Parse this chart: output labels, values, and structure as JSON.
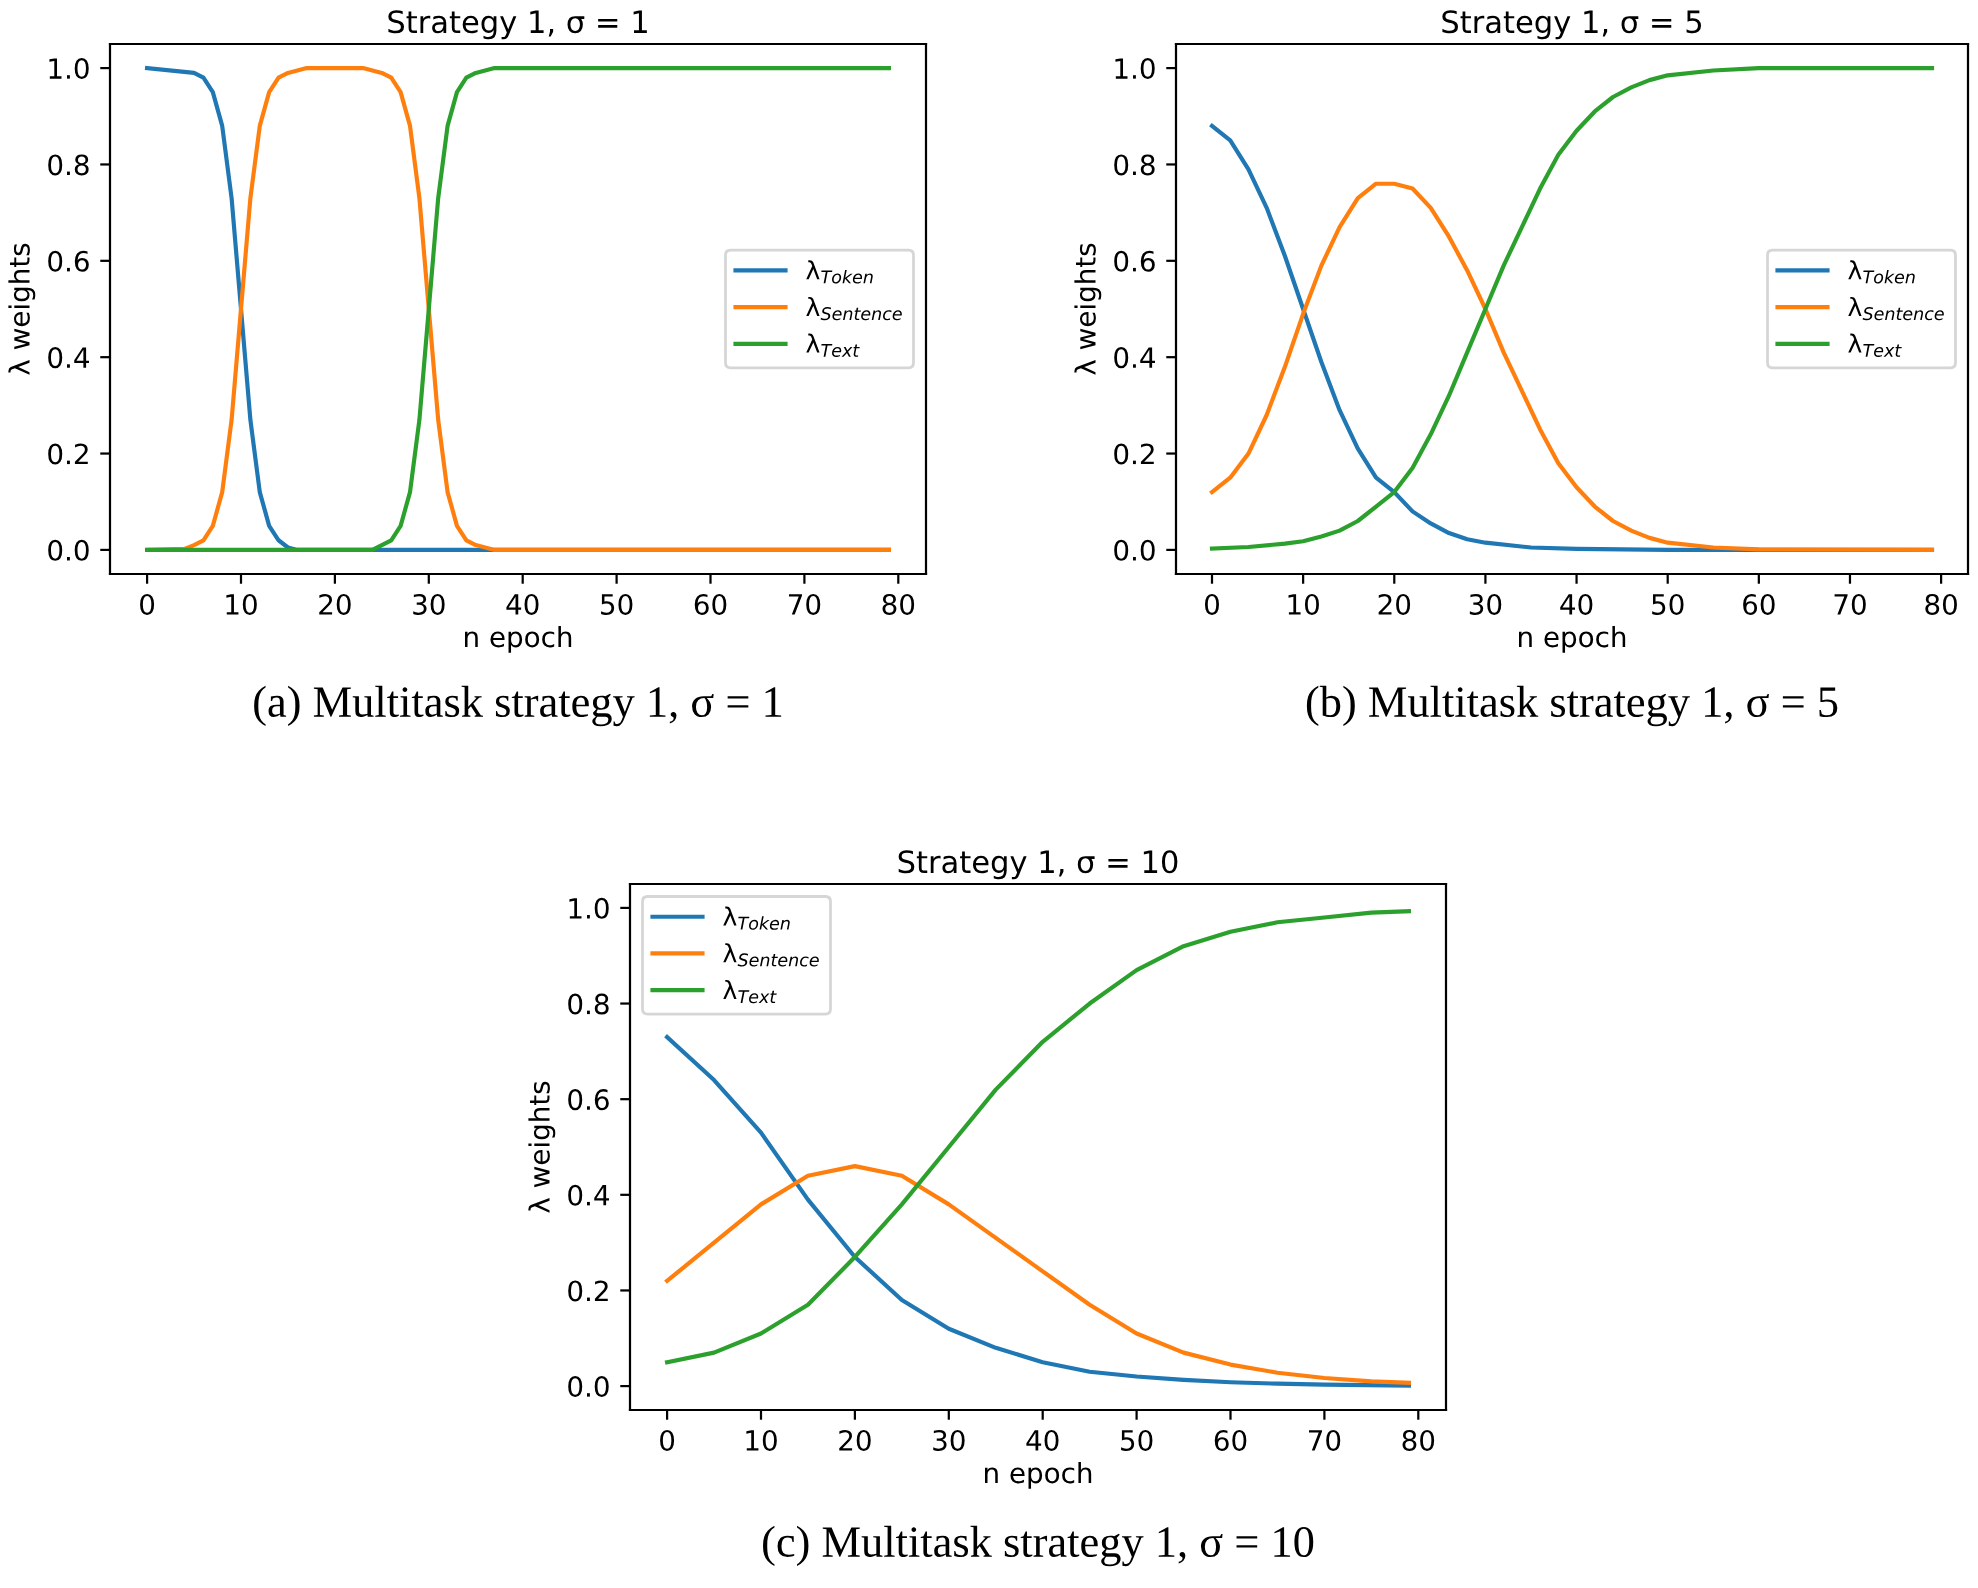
{
  "chart_data": [
    {
      "type": "line",
      "title": "Strategy 1, σ = 1",
      "xlabel": "n epoch",
      "ylabel": "λ weights",
      "legend": "center right",
      "grid": false,
      "xlim": [
        -3.95,
        82.95
      ],
      "xticks": [
        0,
        10,
        20,
        30,
        40,
        50,
        60,
        70,
        80
      ],
      "ylim": [
        -0.05,
        1.05
      ],
      "yticks": [
        {
          "value": 0,
          "label": "0.0"
        },
        {
          "value": 0.2,
          "label": "0.2"
        },
        {
          "value": 0.4,
          "label": "0.4"
        },
        {
          "value": 0.6,
          "label": "0.6"
        },
        {
          "value": 0.8,
          "label": "0.8"
        },
        {
          "value": 1,
          "label": "1.0"
        }
      ],
      "annotations": [
        "(a) Multitask strategy 1, σ = 1"
      ],
      "series": [
        {
          "name": "λ$_{Token}$",
          "color": "#1f77b4",
          "x": [
            0,
            5,
            6,
            7,
            8,
            9,
            10,
            11,
            12,
            13,
            14,
            15,
            16,
            79
          ],
          "values": [
            1,
            0.99,
            0.98,
            0.95,
            0.88,
            0.73,
            0.5,
            0.27,
            0.12,
            0.05,
            0.02,
            0.005,
            0,
            0
          ]
        },
        {
          "name": "λ$_{Sentence}$",
          "color": "#ff7f0e",
          "x": [
            0,
            4,
            5,
            6,
            7,
            8,
            9,
            10,
            11,
            12,
            13,
            14,
            15,
            17,
            23,
            25,
            26,
            27,
            28,
            29,
            30,
            31,
            32,
            33,
            34,
            35,
            37,
            79
          ],
          "values": [
            0,
            0.002,
            0.01,
            0.02,
            0.05,
            0.12,
            0.27,
            0.5,
            0.73,
            0.88,
            0.95,
            0.98,
            0.99,
            1,
            1,
            0.99,
            0.98,
            0.95,
            0.88,
            0.73,
            0.5,
            0.27,
            0.12,
            0.05,
            0.02,
            0.01,
            0,
            0
          ]
        },
        {
          "name": "λ$_{Text}$",
          "color": "#2ca02c",
          "x": [
            0,
            24,
            25,
            26,
            27,
            28,
            29,
            30,
            31,
            32,
            33,
            34,
            35,
            37,
            79
          ],
          "values": [
            0,
            0,
            0.01,
            0.02,
            0.05,
            0.12,
            0.27,
            0.5,
            0.73,
            0.88,
            0.95,
            0.98,
            0.99,
            1,
            1
          ]
        }
      ]
    },
    {
      "type": "line",
      "title": "Strategy 1, σ = 5",
      "xlabel": "n epoch",
      "ylabel": "λ weights",
      "legend": "center right",
      "grid": false,
      "xlim": [
        -3.95,
        82.95
      ],
      "xticks": [
        0,
        10,
        20,
        30,
        40,
        50,
        60,
        70,
        80
      ],
      "ylim": [
        -0.05,
        1.05
      ],
      "yticks": [
        {
          "value": 0,
          "label": "0.0"
        },
        {
          "value": 0.2,
          "label": "0.2"
        },
        {
          "value": 0.4,
          "label": "0.4"
        },
        {
          "value": 0.6,
          "label": "0.6"
        },
        {
          "value": 0.8,
          "label": "0.8"
        },
        {
          "value": 1,
          "label": "1.0"
        }
      ],
      "annotations": [
        "(b) Multitask strategy 1, σ = 5"
      ],
      "series": [
        {
          "name": "λ$_{Token}$",
          "color": "#1f77b4",
          "x": [
            0,
            2,
            4,
            6,
            8,
            10,
            12,
            14,
            16,
            18,
            20,
            22,
            24,
            26,
            28,
            30,
            35,
            40,
            50,
            79
          ],
          "values": [
            0.88,
            0.85,
            0.79,
            0.71,
            0.61,
            0.5,
            0.39,
            0.29,
            0.21,
            0.15,
            0.12,
            0.08,
            0.055,
            0.035,
            0.022,
            0.015,
            0.005,
            0.002,
            0,
            0
          ]
        },
        {
          "name": "λ$_{Sentence}$",
          "color": "#ff7f0e",
          "x": [
            0,
            2,
            4,
            6,
            8,
            10,
            12,
            14,
            16,
            18,
            20,
            22,
            24,
            26,
            28,
            30,
            32,
            34,
            36,
            38,
            40,
            42,
            44,
            46,
            48,
            50,
            55,
            60,
            79
          ],
          "values": [
            0.12,
            0.15,
            0.2,
            0.28,
            0.38,
            0.49,
            0.59,
            0.67,
            0.73,
            0.76,
            0.76,
            0.75,
            0.71,
            0.65,
            0.58,
            0.5,
            0.41,
            0.33,
            0.25,
            0.18,
            0.13,
            0.09,
            0.06,
            0.04,
            0.025,
            0.015,
            0.005,
            0.001,
            0
          ]
        },
        {
          "name": "λ$_{Text}$",
          "color": "#2ca02c",
          "x": [
            0,
            4,
            8,
            10,
            12,
            14,
            16,
            18,
            20,
            22,
            24,
            26,
            28,
            30,
            32,
            34,
            36,
            38,
            40,
            42,
            44,
            46,
            48,
            50,
            55,
            60,
            79
          ],
          "values": [
            0.003,
            0.006,
            0.013,
            0.018,
            0.028,
            0.04,
            0.06,
            0.09,
            0.12,
            0.17,
            0.24,
            0.32,
            0.41,
            0.5,
            0.59,
            0.67,
            0.75,
            0.82,
            0.87,
            0.91,
            0.94,
            0.96,
            0.975,
            0.985,
            0.995,
            1,
            1
          ]
        }
      ]
    },
    {
      "type": "line",
      "title": "Strategy 1, σ = 10",
      "xlabel": "n epoch",
      "ylabel": "λ weights",
      "legend": "upper left",
      "grid": false,
      "xlim": [
        -3.95,
        82.95
      ],
      "xticks": [
        0,
        10,
        20,
        30,
        40,
        50,
        60,
        70,
        80
      ],
      "ylim": [
        -0.05,
        1.05
      ],
      "yticks": [
        {
          "value": 0,
          "label": "0.0"
        },
        {
          "value": 0.2,
          "label": "0.2"
        },
        {
          "value": 0.4,
          "label": "0.4"
        },
        {
          "value": 0.6,
          "label": "0.6"
        },
        {
          "value": 0.8,
          "label": "0.8"
        },
        {
          "value": 1,
          "label": "1.0"
        }
      ],
      "annotations": [
        "(c) Multitask strategy 1, σ = 10"
      ],
      "series": [
        {
          "name": "λ$_{Token}$",
          "color": "#1f77b4",
          "x": [
            0,
            5,
            10,
            15,
            20,
            25,
            30,
            35,
            40,
            45,
            50,
            55,
            60,
            65,
            70,
            79
          ],
          "values": [
            0.73,
            0.64,
            0.53,
            0.39,
            0.27,
            0.18,
            0.12,
            0.08,
            0.05,
            0.03,
            0.02,
            0.013,
            0.008,
            0.005,
            0.003,
            0.001
          ]
        },
        {
          "name": "λ$_{Sentence}$",
          "color": "#ff7f0e",
          "x": [
            0,
            5,
            10,
            15,
            20,
            25,
            30,
            35,
            40,
            45,
            50,
            55,
            60,
            65,
            70,
            75,
            79
          ],
          "values": [
            0.22,
            0.3,
            0.38,
            0.44,
            0.46,
            0.44,
            0.38,
            0.31,
            0.24,
            0.17,
            0.11,
            0.07,
            0.045,
            0.028,
            0.017,
            0.01,
            0.007
          ]
        },
        {
          "name": "λ$_{Text}$",
          "color": "#2ca02c",
          "x": [
            0,
            5,
            10,
            15,
            20,
            25,
            30,
            35,
            40,
            45,
            50,
            55,
            60,
            65,
            70,
            75,
            79
          ],
          "values": [
            0.05,
            0.07,
            0.11,
            0.17,
            0.27,
            0.38,
            0.5,
            0.62,
            0.72,
            0.8,
            0.87,
            0.92,
            0.95,
            0.97,
            0.98,
            0.99,
            0.993
          ]
        }
      ]
    }
  ]
}
